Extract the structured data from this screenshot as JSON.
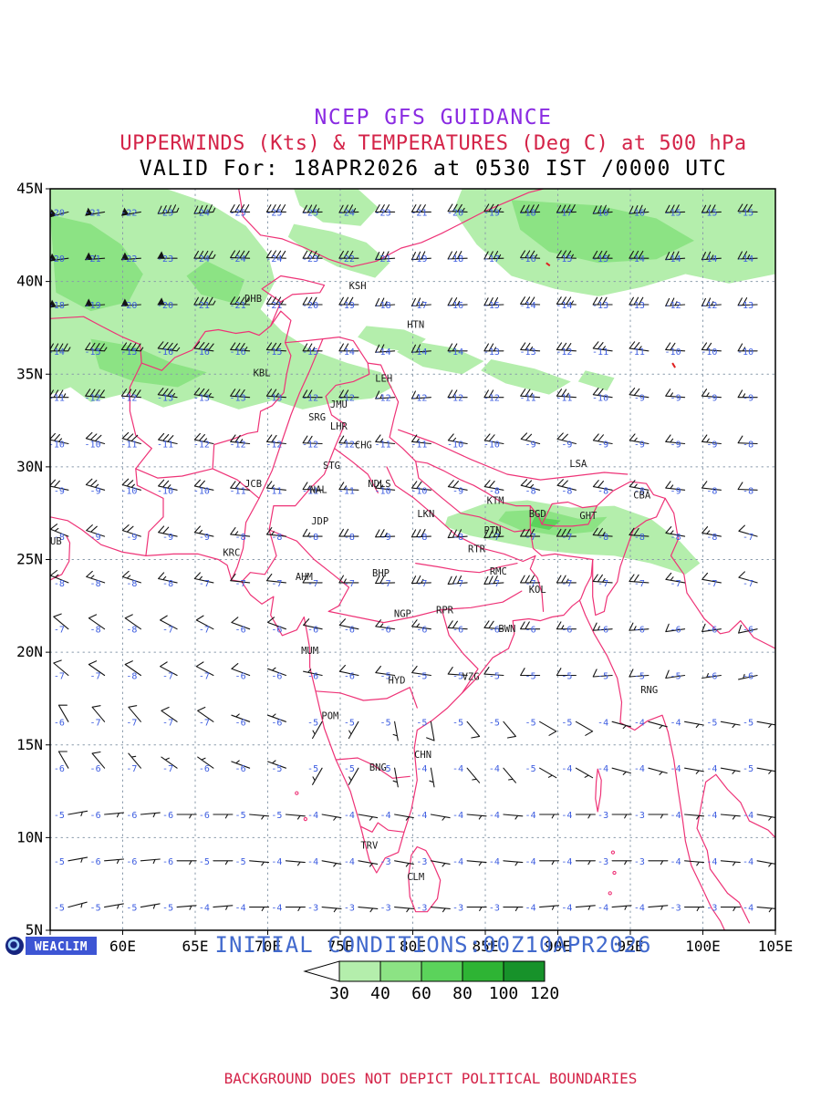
{
  "header": {
    "title1": "NCEP GFS GUIDANCE",
    "title2": "UPPERWINDS (Kts) & TEMPERATURES (Deg C) at 500 hPa",
    "title3": "VALID For: 18APR2026 at 0530 IST /0000 UTC"
  },
  "footer": {
    "logo_text": "WEACLIM",
    "initial_conditions": "INITIAL CONDITIONS:00Z10APR2026",
    "disclaimer": "BACKGROUND DOES NOT DEPICT POLITICAL BOUNDARIES"
  },
  "axes": {
    "lon_labels": [
      "55E",
      "60E",
      "65E",
      "70E",
      "75E",
      "80E",
      "85E",
      "90E",
      "95E",
      "100E",
      "105E"
    ],
    "lat_labels": [
      "5N",
      "10N",
      "15N",
      "20N",
      "25N",
      "30N",
      "35N",
      "40N",
      "45N"
    ]
  },
  "colors": {
    "title1": "#8a2be2",
    "title2": "#d42348",
    "boundary": "#ee3377",
    "temperature_text": "#3c5ce0",
    "initial_text": "#4169cd",
    "grid": "#8899aa",
    "barb": "#151515",
    "red_mark": "#e02020",
    "shade_levels": [
      "#b4eeac",
      "#8ce384",
      "#5bd35b",
      "#2eb434",
      "#17922a"
    ]
  },
  "legend": {
    "labels": [
      "30",
      "40",
      "60",
      "80",
      "100",
      "120"
    ]
  },
  "cities": [
    {
      "code": "DHB",
      "lon": 69.0,
      "lat": 38.9
    },
    {
      "code": "KSH",
      "lon": 76.2,
      "lat": 39.6
    },
    {
      "code": "HTN",
      "lon": 80.2,
      "lat": 37.5
    },
    {
      "code": "KBL",
      "lon": 69.6,
      "lat": 34.9
    },
    {
      "code": "LEH",
      "lon": 78.0,
      "lat": 34.6
    },
    {
      "code": "JMU",
      "lon": 74.9,
      "lat": 33.2
    },
    {
      "code": "SRG",
      "lon": 73.4,
      "lat": 32.5
    },
    {
      "code": "LHR",
      "lon": 74.9,
      "lat": 32.0
    },
    {
      "code": "CHG",
      "lon": 76.6,
      "lat": 31.0
    },
    {
      "code": "STG",
      "lon": 74.4,
      "lat": 29.9
    },
    {
      "code": "JCB",
      "lon": 69.0,
      "lat": 28.9
    },
    {
      "code": "NAL",
      "lon": 73.5,
      "lat": 28.6
    },
    {
      "code": "NDLS",
      "lon": 77.7,
      "lat": 28.9
    },
    {
      "code": "JDP",
      "lon": 73.6,
      "lat": 26.9
    },
    {
      "code": "LKN",
      "lon": 80.9,
      "lat": 27.3
    },
    {
      "code": "KTM",
      "lon": 85.7,
      "lat": 28.0
    },
    {
      "code": "BGD",
      "lon": 88.6,
      "lat": 27.3
    },
    {
      "code": "GHT",
      "lon": 92.1,
      "lat": 27.2
    },
    {
      "code": "CBA",
      "lon": 95.8,
      "lat": 28.3
    },
    {
      "code": "LSA",
      "lon": 91.4,
      "lat": 30.0
    },
    {
      "code": "PTN",
      "lon": 85.5,
      "lat": 26.4
    },
    {
      "code": "RTR",
      "lon": 84.4,
      "lat": 25.4
    },
    {
      "code": "KRC",
      "lon": 67.5,
      "lat": 25.2
    },
    {
      "code": "DUB",
      "lon": 55.2,
      "lat": 25.8
    },
    {
      "code": "AHM",
      "lon": 72.5,
      "lat": 23.9
    },
    {
      "code": "BHP",
      "lon": 77.8,
      "lat": 24.1
    },
    {
      "code": "RMC",
      "lon": 85.9,
      "lat": 24.2
    },
    {
      "code": "KOL",
      "lon": 88.6,
      "lat": 23.2
    },
    {
      "code": "NGP",
      "lon": 79.3,
      "lat": 21.9
    },
    {
      "code": "RPR",
      "lon": 82.2,
      "lat": 22.1
    },
    {
      "code": "BWN",
      "lon": 86.5,
      "lat": 21.1
    },
    {
      "code": "MUM",
      "lon": 72.9,
      "lat": 19.9
    },
    {
      "code": "HYD",
      "lon": 78.9,
      "lat": 18.3
    },
    {
      "code": "VZG",
      "lon": 84.0,
      "lat": 18.5
    },
    {
      "code": "RNG",
      "lon": 96.3,
      "lat": 17.8
    },
    {
      "code": "POM",
      "lon": 74.3,
      "lat": 16.4
    },
    {
      "code": "CHN",
      "lon": 80.7,
      "lat": 14.3
    },
    {
      "code": "BNG",
      "lon": 77.6,
      "lat": 13.6
    },
    {
      "code": "TRV",
      "lon": 77.0,
      "lat": 9.4
    },
    {
      "code": "CLM",
      "lon": 80.2,
      "lat": 7.7
    }
  ],
  "chart_data": {
    "type": "heatmap",
    "title": "NCEP GFS GUIDANCE",
    "subtitle": "UPPERWINDS (Kts) & TEMPERATURES (Deg C) at 500 hPa",
    "valid_time": "18APR2026 at 0530 IST /0000 UTC",
    "initial_time": "00Z10APR2026",
    "lon_range": [
      55,
      105
    ],
    "lat_range": [
      5,
      45
    ],
    "grid_lons": [
      55,
      60,
      65,
      70,
      75,
      80,
      85,
      90,
      95,
      100,
      105
    ],
    "grid_lats": [
      45,
      40,
      35,
      30,
      25,
      20,
      15,
      10,
      5
    ],
    "temperature_c": [
      [
        -20,
        -22,
        -24,
        -26,
        -25,
        -23,
        -21,
        -18,
        -17,
        -16,
        -15
      ],
      [
        -19,
        -22,
        -23,
        -24,
        -22,
        -19,
        -16,
        -15,
        -14,
        -13,
        -14
      ],
      [
        -12,
        -13,
        -14,
        -13,
        -12,
        -12,
        -13,
        -12,
        -10,
        -9,
        -9
      ],
      [
        -9,
        -10,
        -11,
        -12,
        -12,
        -11,
        -9,
        -8,
        -8,
        -9,
        -8
      ],
      [
        -8,
        -9,
        -8,
        -7,
        -7,
        -8,
        -7,
        -7,
        -8,
        -8,
        -7
      ],
      [
        -7,
        -8,
        -7,
        -6,
        -6,
        -5,
        -6,
        -5,
        -5,
        -6,
        -6
      ],
      [
        -6,
        -7,
        -7,
        -6,
        -5,
        -5,
        -4,
        -5,
        -4,
        -4,
        -5
      ],
      [
        -5,
        -6,
        -6,
        -5,
        -4,
        -3,
        -4,
        -4,
        -3,
        -4,
        -4
      ],
      [
        -5,
        -5,
        -4,
        -4,
        -3,
        -3,
        -3,
        -4,
        -4,
        -3,
        -4
      ]
    ],
    "wind_speed_kt": [
      [
        45,
        50,
        45,
        40,
        35,
        32,
        35,
        40,
        38,
        32,
        28
      ],
      [
        50,
        55,
        48,
        40,
        32,
        26,
        30,
        36,
        32,
        26,
        22
      ],
      [
        38,
        45,
        40,
        30,
        20,
        16,
        20,
        26,
        22,
        16,
        14
      ],
      [
        22,
        26,
        25,
        20,
        15,
        12,
        15,
        20,
        16,
        12,
        10
      ],
      [
        15,
        15,
        15,
        10,
        15,
        30,
        40,
        35,
        25,
        15,
        10
      ],
      [
        10,
        10,
        10,
        8,
        8,
        10,
        14,
        12,
        10,
        8,
        8
      ],
      [
        8,
        8,
        8,
        6,
        5,
        6,
        8,
        7,
        6,
        5,
        6
      ],
      [
        6,
        6,
        5,
        5,
        5,
        5,
        6,
        5,
        5,
        5,
        5
      ],
      [
        5,
        5,
        5,
        5,
        5,
        4,
        5,
        5,
        4,
        5,
        5
      ]
    ],
    "wind_from_deg": [
      [
        255,
        260,
        265,
        270,
        268,
        270,
        272,
        268,
        265,
        268,
        272
      ],
      [
        262,
        266,
        270,
        272,
        270,
        266,
        268,
        272,
        270,
        266,
        268
      ],
      [
        270,
        274,
        278,
        274,
        270,
        266,
        270,
        274,
        278,
        274,
        270
      ],
      [
        282,
        286,
        282,
        276,
        272,
        276,
        280,
        284,
        280,
        276,
        272
      ],
      [
        292,
        288,
        282,
        276,
        270,
        268,
        266,
        270,
        274,
        280,
        286
      ],
      [
        310,
        305,
        298,
        290,
        282,
        278,
        274,
        270,
        266,
        262,
        258
      ],
      [
        330,
        320,
        305,
        290,
        210,
        170,
        140,
        120,
        105,
        100,
        100
      ],
      [
        80,
        85,
        90,
        95,
        100,
        100,
        95,
        90,
        90,
        95,
        100
      ],
      [
        75,
        80,
        85,
        90,
        95,
        95,
        90,
        85,
        85,
        90,
        95
      ]
    ],
    "isotach_levels_kt": [
      30,
      40,
      60,
      80,
      100,
      120
    ],
    "shaded_regions": [
      {
        "level": 30,
        "points": [
          [
            55,
            45
          ],
          [
            63,
            45
          ],
          [
            66,
            44.2
          ],
          [
            68.5,
            43
          ],
          [
            70,
            41.5
          ],
          [
            70.5,
            40
          ],
          [
            69.5,
            38.5
          ],
          [
            71,
            37.3
          ],
          [
            73,
            36.3
          ],
          [
            75.5,
            35.6
          ],
          [
            77.8,
            35.1
          ],
          [
            78.6,
            34.3
          ],
          [
            77.2,
            33.7
          ],
          [
            74.8,
            33.5
          ],
          [
            72.4,
            33.1
          ],
          [
            70.4,
            33.6
          ],
          [
            68,
            33.1
          ],
          [
            65.4,
            33.8
          ],
          [
            62.8,
            33.2
          ],
          [
            60.4,
            34
          ],
          [
            57.8,
            33.5
          ],
          [
            56.4,
            34.3
          ],
          [
            55,
            33.9
          ]
        ]
      },
      {
        "level": 40,
        "points": [
          [
            55,
            43.6
          ],
          [
            57.8,
            43.1
          ],
          [
            59.9,
            42
          ],
          [
            61.4,
            40.4
          ],
          [
            60.4,
            38.9
          ],
          [
            57.8,
            38.4
          ],
          [
            55.4,
            39.4
          ]
        ]
      },
      {
        "level": 40,
        "points": [
          [
            57.8,
            36.9
          ],
          [
            60.8,
            36.5
          ],
          [
            63.4,
            35.6
          ],
          [
            65.8,
            35.1
          ],
          [
            63.8,
            34.3
          ],
          [
            60.8,
            34.6
          ],
          [
            58.4,
            35.3
          ]
        ]
      },
      {
        "level": 40,
        "points": [
          [
            65.8,
            41.1
          ],
          [
            68.4,
            40.1
          ],
          [
            67.8,
            38.8
          ],
          [
            65.4,
            39.3
          ],
          [
            64.4,
            40.3
          ]
        ]
      },
      {
        "level": 30,
        "points": [
          [
            71.8,
            45
          ],
          [
            76.2,
            45
          ],
          [
            77.6,
            44
          ],
          [
            76.4,
            43
          ],
          [
            73.8,
            43.2
          ],
          [
            72.2,
            44.1
          ]
        ]
      },
      {
        "level": 30,
        "points": [
          [
            71.8,
            43.1
          ],
          [
            74.4,
            42.7
          ],
          [
            76.8,
            42.1
          ],
          [
            78.4,
            41
          ],
          [
            77.4,
            40.2
          ],
          [
            74.8,
            40.8
          ],
          [
            72.8,
            41.6
          ],
          [
            71.4,
            42.4
          ]
        ]
      },
      {
        "level": 30,
        "points": [
          [
            83.4,
            45
          ],
          [
            105,
            45
          ],
          [
            105,
            40.4
          ],
          [
            101.8,
            39.9
          ],
          [
            98.8,
            40.4
          ],
          [
            95.8,
            39.7
          ],
          [
            92.8,
            39.2
          ],
          [
            89.8,
            39.6
          ],
          [
            86.8,
            40.3
          ],
          [
            84.4,
            42
          ],
          [
            82.8,
            43.8
          ]
        ]
      },
      {
        "level": 40,
        "points": [
          [
            86.8,
            44.4
          ],
          [
            92.8,
            44.1
          ],
          [
            96.8,
            43.4
          ],
          [
            99.4,
            42.2
          ],
          [
            96.8,
            41.2
          ],
          [
            92.8,
            41
          ],
          [
            89.4,
            41.6
          ],
          [
            87.4,
            42.8
          ]
        ]
      },
      {
        "level": 30,
        "points": [
          [
            76.8,
            37.6
          ],
          [
            79.4,
            37.4
          ],
          [
            80.9,
            36.9
          ],
          [
            79.9,
            36.2
          ],
          [
            77.8,
            36.4
          ],
          [
            76.2,
            37
          ]
        ]
      },
      {
        "level": 30,
        "points": [
          [
            79.9,
            36.8
          ],
          [
            82.9,
            36.4
          ],
          [
            84.9,
            35.7
          ],
          [
            83.4,
            35
          ],
          [
            80.7,
            35.4
          ],
          [
            78.9,
            36.2
          ]
        ]
      },
      {
        "level": 30,
        "points": [
          [
            85.4,
            35.8
          ],
          [
            88.4,
            35.3
          ],
          [
            90.9,
            34.6
          ],
          [
            89.4,
            33.9
          ],
          [
            86.4,
            34.5
          ],
          [
            84.7,
            35.2
          ]
        ]
      },
      {
        "level": 30,
        "points": [
          [
            91.9,
            35.2
          ],
          [
            93.9,
            34.8
          ],
          [
            93.4,
            34.1
          ],
          [
            91.4,
            34.6
          ]
        ]
      },
      {
        "level": 30,
        "points": [
          [
            82.4,
            27.3
          ],
          [
            84.9,
            28
          ],
          [
            87.9,
            28.2
          ],
          [
            90.9,
            27.8
          ],
          [
            93.9,
            27.9
          ],
          [
            96.4,
            27.2
          ],
          [
            98.4,
            26
          ],
          [
            99.8,
            24.8
          ],
          [
            98.8,
            24.2
          ],
          [
            96.4,
            24.8
          ],
          [
            93.9,
            25.2
          ],
          [
            91.4,
            25.3
          ],
          [
            88.9,
            25.5
          ],
          [
            86.4,
            25.9
          ],
          [
            83.9,
            26.3
          ],
          [
            82.2,
            26.8
          ]
        ]
      },
      {
        "level": 40,
        "points": [
          [
            86.4,
            27.6
          ],
          [
            88.9,
            27.7
          ],
          [
            91.4,
            27.2
          ],
          [
            93.4,
            27.3
          ],
          [
            92.4,
            26.5
          ],
          [
            89.9,
            26.3
          ],
          [
            87.4,
            26.6
          ],
          [
            85.9,
            27.1
          ]
        ]
      },
      {
        "level": 60,
        "points": [
          [
            88.4,
            27.3
          ],
          [
            90.2,
            27.1
          ],
          [
            89.4,
            26.6
          ],
          [
            88.1,
            26.8
          ]
        ]
      }
    ]
  }
}
